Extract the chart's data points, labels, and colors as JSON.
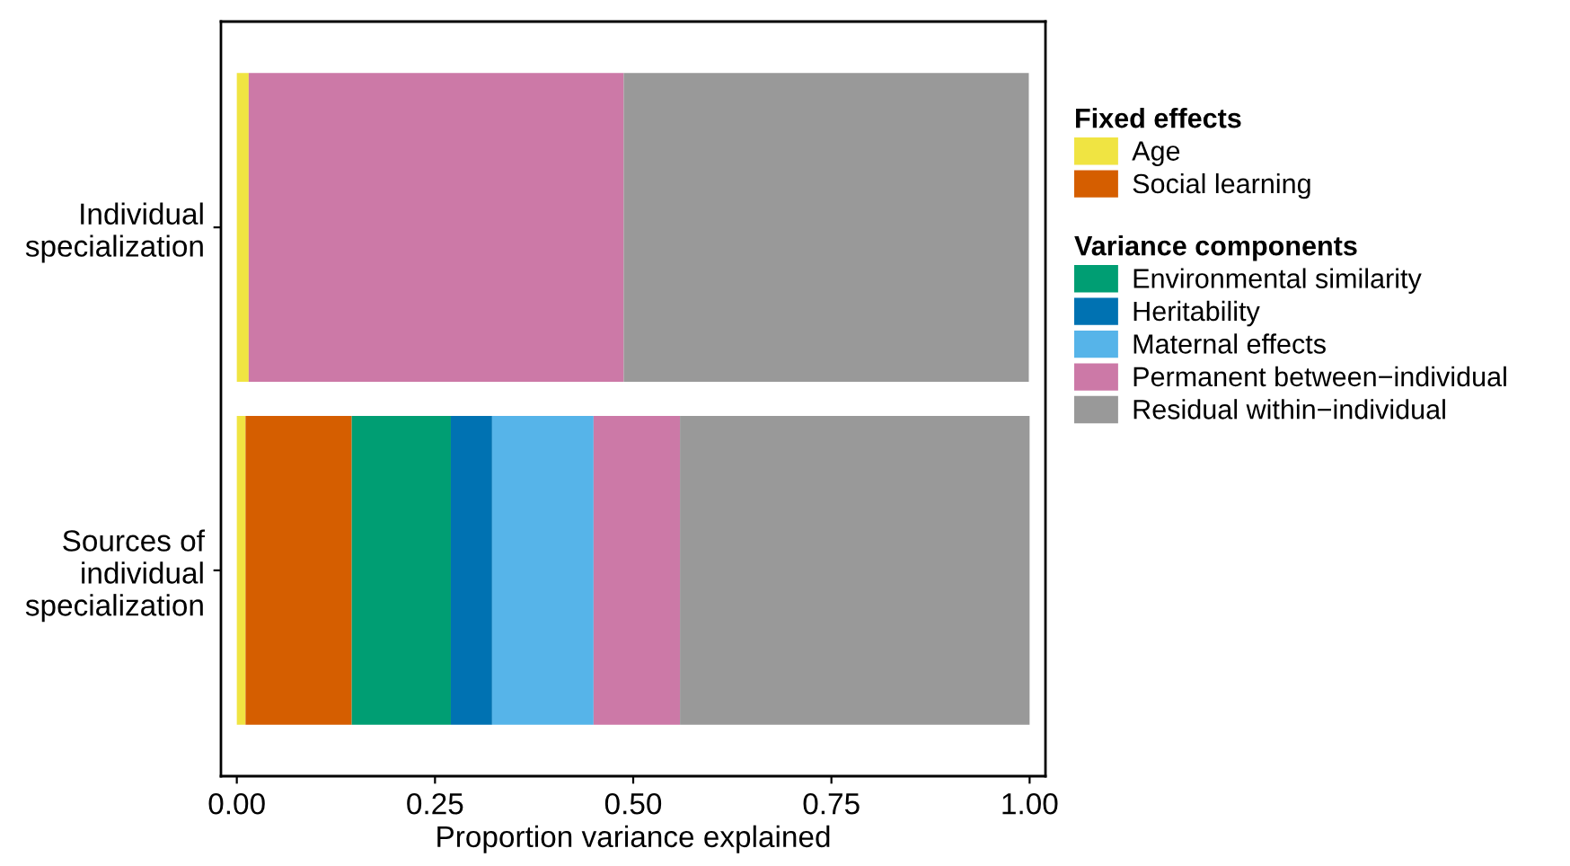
{
  "chart_data": {
    "type": "bar",
    "orientation": "horizontal",
    "stacked": true,
    "categories": [
      "Individual\nspecialization",
      "Sources of\nindividual\nspecialization"
    ],
    "xlabel": "Proportion variance explained",
    "xlim": [
      -0.02,
      1.02
    ],
    "xticks": [
      {
        "value": 0,
        "label": "0.00"
      },
      {
        "value": 0.25,
        "label": "0.25"
      },
      {
        "value": 0.5,
        "label": "0.50"
      },
      {
        "value": 0.75,
        "label": "0.75"
      },
      {
        "value": 1,
        "label": "1.00"
      }
    ],
    "legend": "right",
    "legend_title": "Fixed effects",
    "grid": false,
    "annotations": [
      "Variance components"
    ],
    "series": [
      {
        "name": "Age",
        "color": "#f0e442",
        "values": [
          0.015,
          0.011
        ]
      },
      {
        "name": "Social learning",
        "color": "#d55e00",
        "values": [
          null,
          0.134
        ]
      },
      {
        "name": "Environmental similarity",
        "color": "#009e73",
        "values": [
          null,
          0.125
        ]
      },
      {
        "name": "Heritability",
        "color": "#0072b2",
        "values": [
          null,
          0.052
        ]
      },
      {
        "name": "Maternal effects",
        "color": "#56b4e9",
        "values": [
          null,
          0.128
        ]
      },
      {
        "name": "Permanent between−individual",
        "color": "#cc79a7",
        "values": [
          0.473,
          0.109
        ]
      },
      {
        "name": "Residual within−individual",
        "color": "#999999",
        "values": [
          0.511,
          0.441
        ]
      }
    ]
  }
}
